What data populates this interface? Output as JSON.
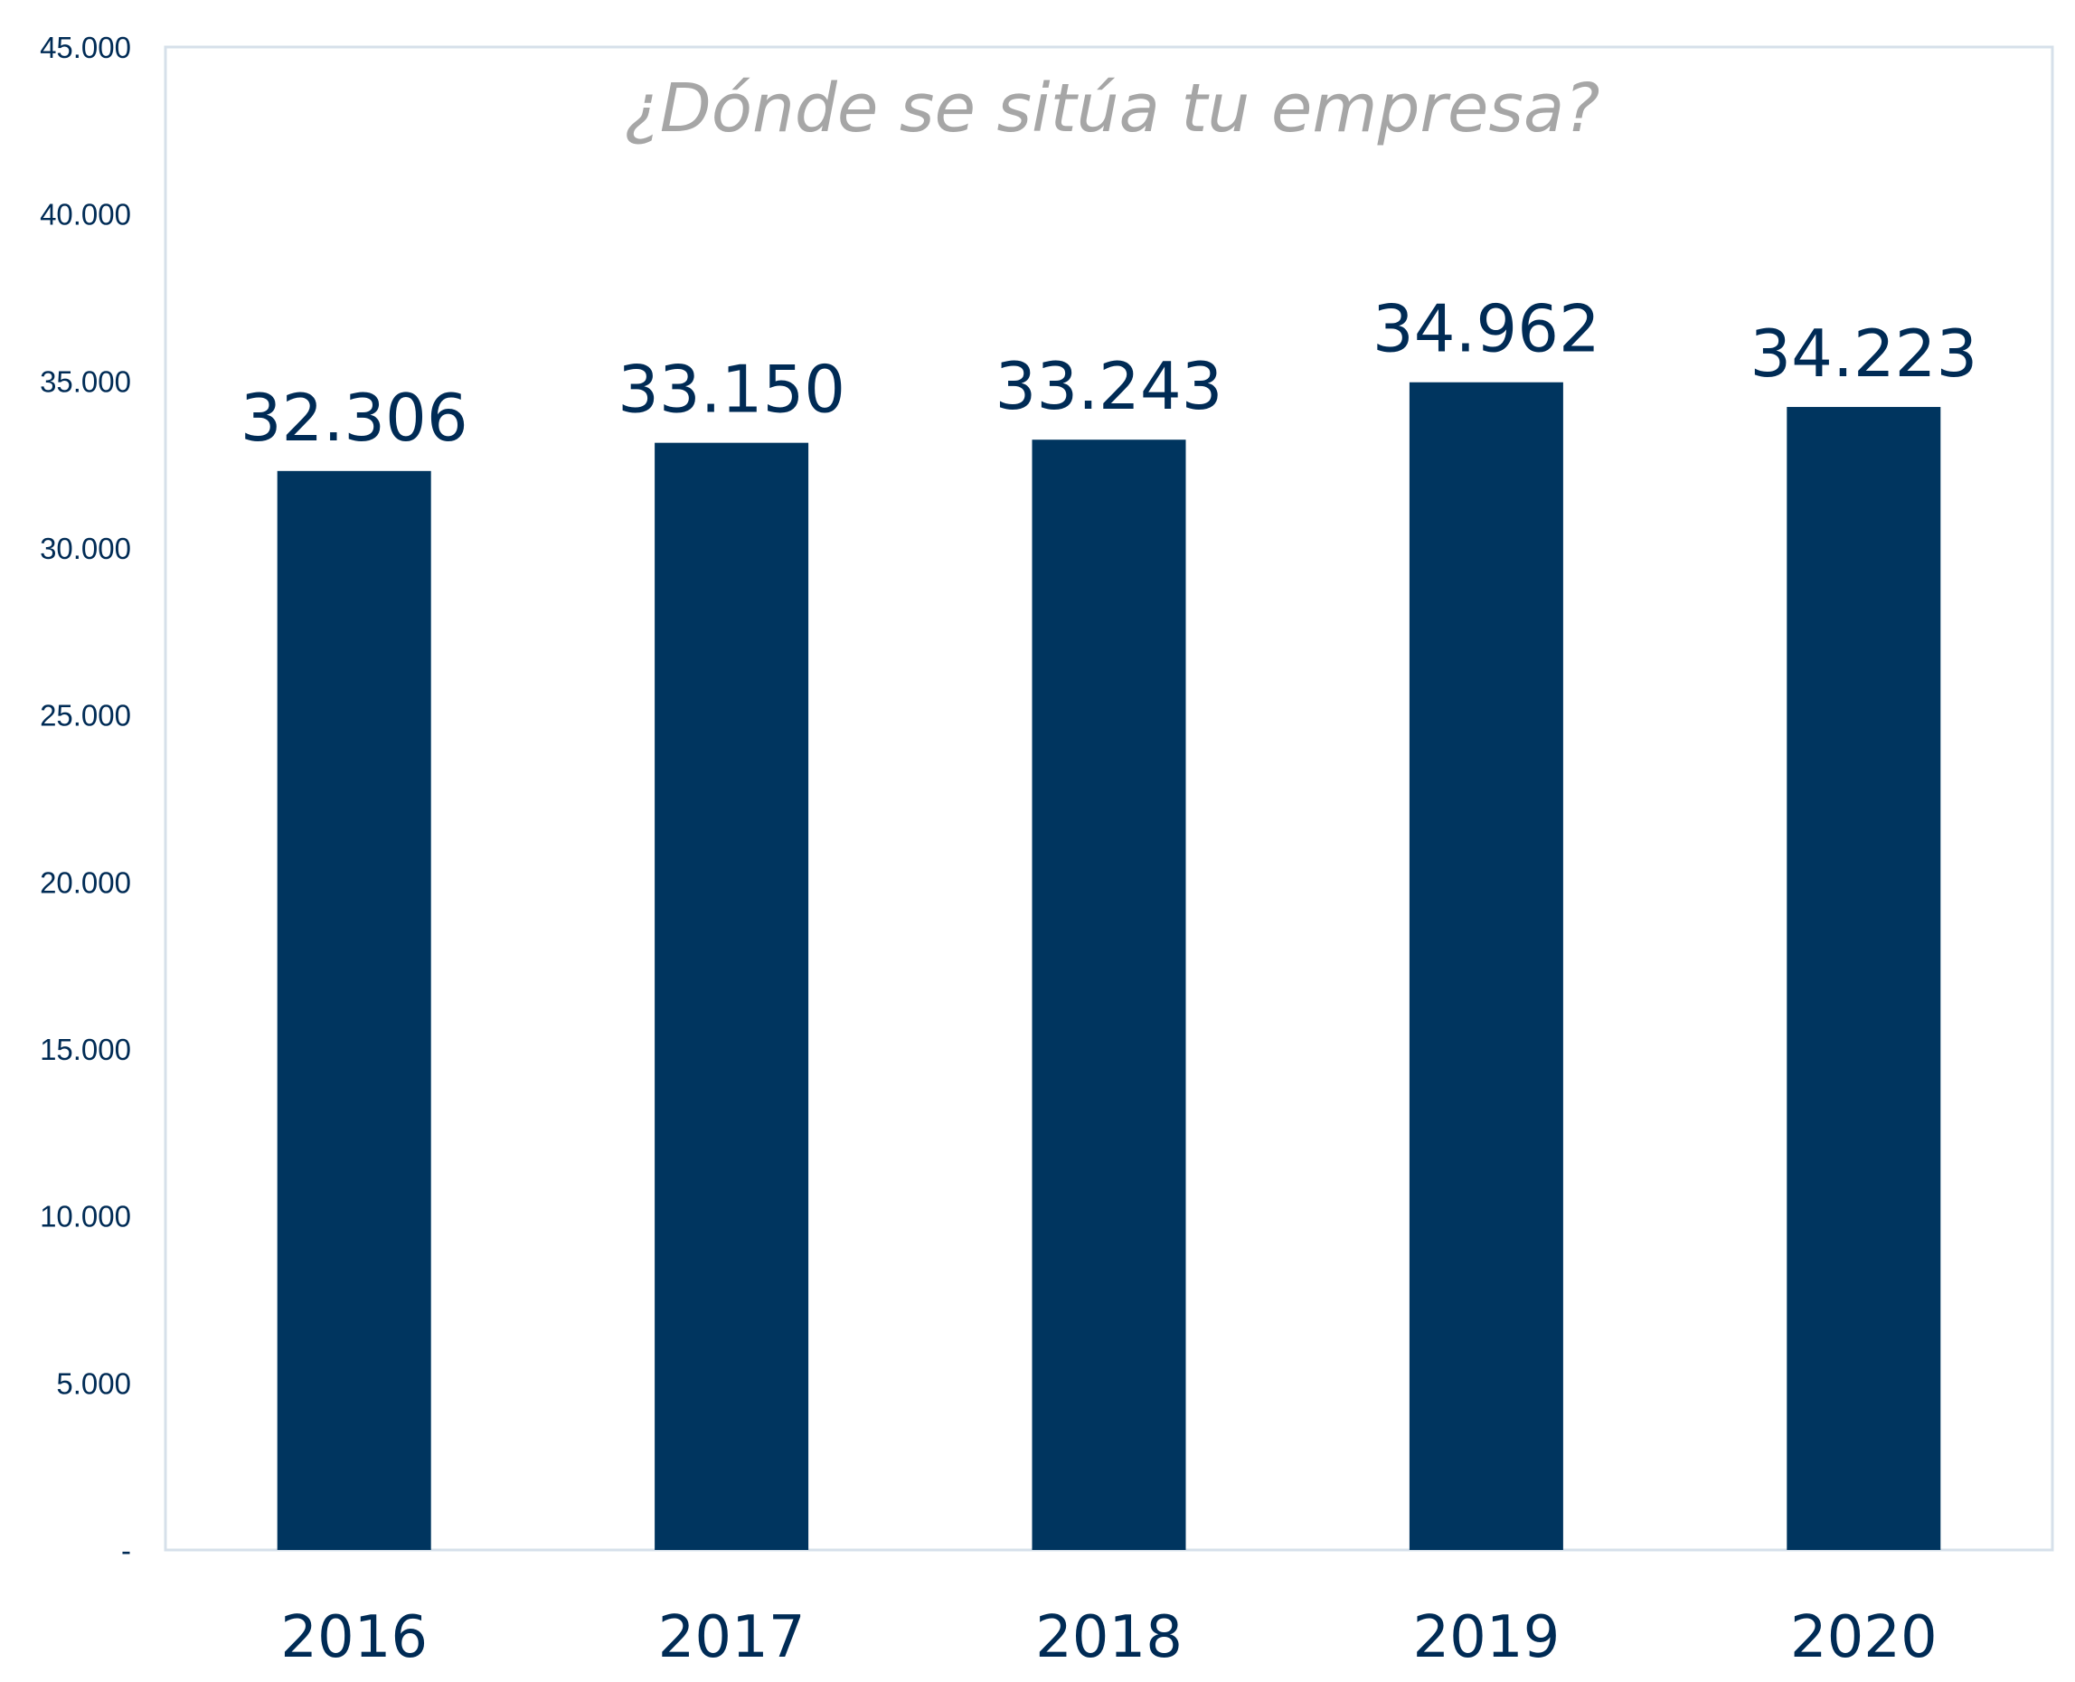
{
  "chart_data": {
    "type": "bar",
    "title": "¿Dónde se sitúa tu empresa?",
    "xlabel": "",
    "ylabel": "",
    "categories": [
      "2016",
      "2017",
      "2018",
      "2019",
      "2020"
    ],
    "values": [
      32306,
      33150,
      33243,
      34962,
      34223
    ],
    "data_labels": [
      "32.306",
      "33.150",
      "33.243",
      "34.962",
      "34.223"
    ],
    "ylim": [
      0,
      45000
    ],
    "yticks": [
      0,
      5000,
      10000,
      15000,
      20000,
      25000,
      30000,
      35000,
      40000,
      45000
    ],
    "ytick_labels": [
      "-",
      "5.000",
      "10.000",
      "15.000",
      "20.000",
      "25.000",
      "30.000",
      "35.000",
      "40.000",
      "45.000"
    ],
    "grid": false,
    "legend": "none",
    "colors": {
      "bar": "#00355f",
      "title": "#a6a6a6",
      "text": "#002b55",
      "frame": "#d6e0ea"
    }
  }
}
